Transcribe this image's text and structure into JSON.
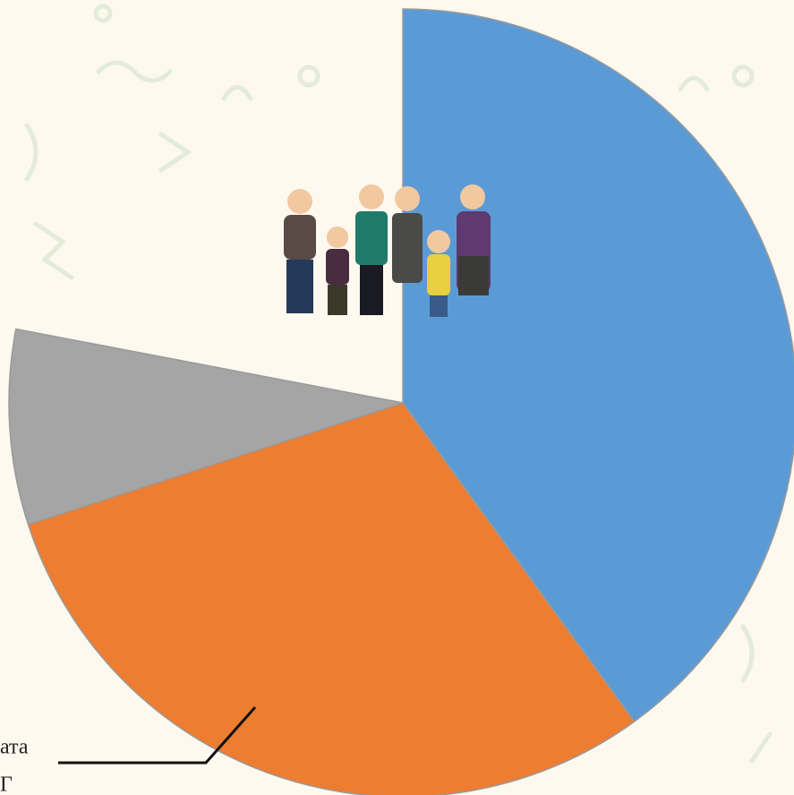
{
  "chart_data": {
    "type": "pie",
    "categories": [
      null,
      null,
      null,
      null
    ],
    "values": [
      40,
      30,
      8,
      22
    ],
    "colors": [
      "#5b9bd5",
      "#ed7d31",
      "#a5a5a5",
      "none"
    ],
    "start_angle": 0,
    "annotation": [
      "ата",
      "Г"
    ]
  }
}
